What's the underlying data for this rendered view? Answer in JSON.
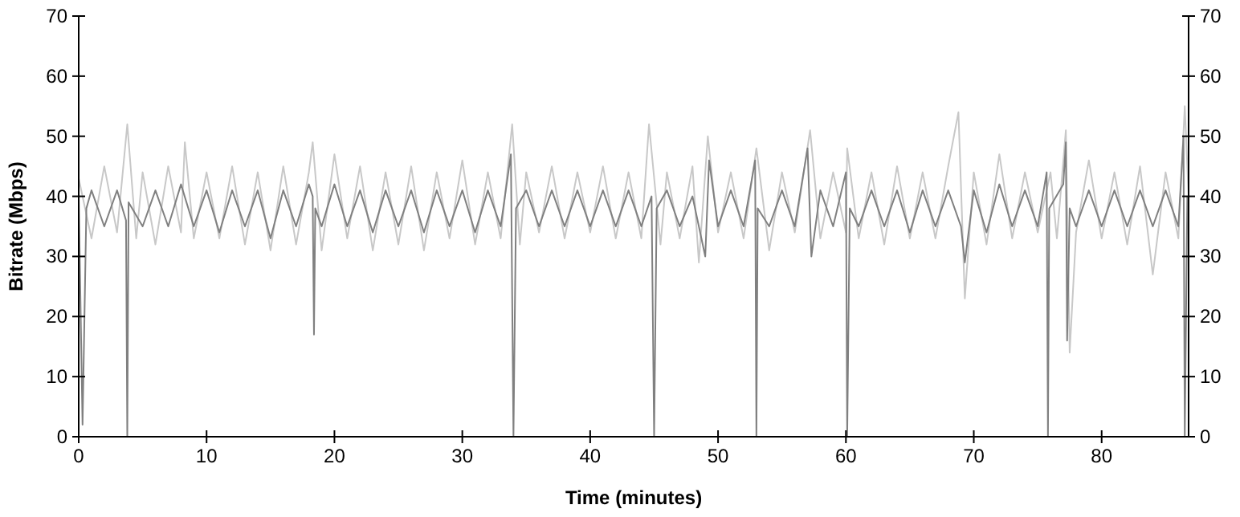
{
  "chart_data": {
    "type": "line",
    "xlabel": "Time (minutes)",
    "ylabel": "Bitrate (Mbps)",
    "xlim": [
      0,
      86.8
    ],
    "xticks": [
      0,
      10,
      20,
      30,
      40,
      50,
      60,
      70,
      80
    ],
    "ylim": [
      0,
      70
    ],
    "yticks": [
      0,
      10,
      20,
      30,
      40,
      50,
      60,
      70
    ],
    "y2lim": [
      0,
      70
    ],
    "y2ticks": [
      0,
      10,
      20,
      30,
      40,
      50,
      60,
      70
    ],
    "line_style": "solid",
    "series": [
      {
        "color": "#c8c8c8",
        "x": [
          0,
          1,
          2,
          3,
          3.8,
          4.5,
          5,
          6,
          7,
          8,
          8.3,
          9,
          10,
          11,
          12,
          13,
          14,
          15,
          16,
          17,
          18,
          18.3,
          19,
          20,
          21,
          22,
          23,
          24,
          25,
          26,
          27,
          28,
          29,
          30,
          31,
          32,
          33,
          33.9,
          34.5,
          35,
          36,
          37,
          38,
          39,
          40,
          41,
          42,
          43,
          44,
          44.6,
          45.5,
          46,
          47,
          48,
          48.5,
          49.2,
          50,
          51,
          52,
          53,
          54,
          55,
          56,
          57.2,
          58,
          59,
          60,
          60.1,
          61,
          62,
          63,
          64,
          65,
          66,
          67,
          68,
          68.8,
          69.3,
          70,
          71,
          72,
          73,
          74,
          75,
          76,
          76.5,
          77.2,
          77.5,
          78,
          79,
          80,
          81,
          82,
          83,
          84,
          85,
          86,
          86.5,
          86.8
        ],
        "values": [
          43,
          33,
          45,
          34,
          52,
          33,
          44,
          32,
          45,
          34,
          49,
          33,
          44,
          33,
          45,
          32,
          44,
          31,
          45,
          32,
          44,
          49,
          31,
          47,
          33,
          45,
          31,
          44,
          32,
          45,
          31,
          44,
          33,
          46,
          32,
          44,
          33,
          52,
          32,
          44,
          34,
          45,
          33,
          44,
          34,
          45,
          33,
          44,
          33,
          52,
          32,
          44,
          33,
          45,
          29,
          50,
          34,
          44,
          33,
          48,
          31,
          44,
          34,
          51,
          33,
          44,
          34,
          48,
          33,
          44,
          32,
          45,
          33,
          44,
          33,
          45,
          54,
          23,
          44,
          32,
          47,
          33,
          44,
          34,
          44,
          33,
          51,
          14,
          34,
          46,
          33,
          44,
          32,
          45,
          27,
          44,
          33,
          55,
          40
        ]
      },
      {
        "color": "#808080",
        "x": [
          0,
          0.3,
          0.6,
          1,
          2,
          3,
          3.7,
          3.8,
          3.9,
          5,
          6,
          7,
          8,
          9,
          10,
          11,
          12,
          13,
          14,
          15,
          16,
          17,
          18,
          18.3,
          18.4,
          18.5,
          19,
          20,
          21,
          22,
          23,
          24,
          25,
          26,
          27,
          28,
          29,
          30,
          31,
          32,
          33,
          33.8,
          34,
          34.2,
          35,
          36,
          37,
          38,
          39,
          40,
          41,
          42,
          43,
          44,
          44.8,
          45,
          45.2,
          46,
          47,
          48,
          49,
          49.3,
          50,
          51,
          52,
          52.9,
          53,
          53.1,
          54,
          55,
          56,
          57,
          57.3,
          58,
          59,
          60,
          60.1,
          60.3,
          61,
          62,
          63,
          64,
          65,
          66,
          67,
          68,
          69,
          69.3,
          70,
          71,
          72,
          73,
          74,
          75,
          75.7,
          75.8,
          75.9,
          77,
          77.2,
          77.3,
          77.5,
          78,
          79,
          80,
          81,
          82,
          83,
          84,
          85,
          86,
          86.4,
          86.5,
          86.7
        ],
        "values": [
          40,
          2,
          38,
          41,
          35,
          41,
          36,
          0,
          39,
          35,
          41,
          35,
          42,
          35,
          41,
          34,
          41,
          35,
          41,
          33,
          41,
          35,
          42,
          40,
          17,
          38,
          35,
          42,
          35,
          41,
          34,
          41,
          35,
          41,
          34,
          41,
          35,
          41,
          34,
          41,
          35,
          47,
          0,
          38,
          41,
          35,
          41,
          35,
          41,
          35,
          41,
          35,
          41,
          35,
          40,
          0,
          38,
          41,
          35,
          40,
          30,
          46,
          35,
          41,
          35,
          46,
          0,
          38,
          35,
          41,
          35,
          48,
          30,
          41,
          35,
          44,
          0,
          38,
          35,
          41,
          35,
          41,
          34,
          41,
          35,
          41,
          35,
          29,
          41,
          34,
          42,
          35,
          41,
          35,
          44,
          0,
          38,
          42,
          49,
          16,
          38,
          35,
          41,
          35,
          41,
          35,
          41,
          35,
          41,
          35,
          50,
          0,
          40
        ]
      }
    ]
  }
}
